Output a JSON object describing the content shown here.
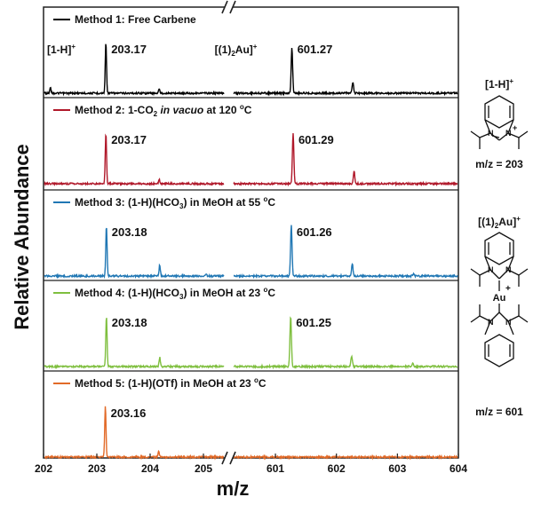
{
  "chart_data": {
    "type": "line",
    "xlabel": "m/z",
    "ylabel": "Relative Abundance",
    "x_segments": [
      {
        "range": [
          202,
          205.4
        ],
        "ticks": [
          "202",
          "203",
          "204",
          "205"
        ]
      },
      {
        "range": [
          600.3,
          604
        ],
        "ticks": [
          "601",
          "602",
          "603",
          "604"
        ]
      }
    ],
    "panels": [
      {
        "name": "Method 1: Free Carbene",
        "legend_parts": [
          {
            "t": "Method 1: Free Carbene"
          }
        ],
        "color": "#000000",
        "peaks": [
          {
            "x": 202.13,
            "h": 0.12
          },
          {
            "x": 203.17,
            "h": 1.0
          },
          {
            "x": 204.17,
            "h": 0.08
          },
          {
            "x": 601.27,
            "h": 0.9
          },
          {
            "x": 602.27,
            "h": 0.22
          }
        ],
        "labels": [
          {
            "text": "203.17",
            "x": 203.17
          },
          {
            "text": "601.27",
            "x": 601.27
          }
        ],
        "species_labels": [
          {
            "text": "[1-H]",
            "sup": "+",
            "x": 202.6
          },
          {
            "text": "[(1)",
            "sub": "2",
            "tail": "Au]",
            "sup": "+",
            "x": 600.7
          }
        ]
      },
      {
        "name": "Method 2: 1-CO2 in vacuo at 120 oC",
        "legend_parts": [
          {
            "t": "Method 2: 1-CO"
          },
          {
            "t": "2",
            "sub": true
          },
          {
            "t": " "
          },
          {
            "t": "in vacuo",
            "italic": true
          },
          {
            "t": " at 120 "
          },
          {
            "t": "o",
            "sup": true
          },
          {
            "t": "C"
          }
        ],
        "color": "#b0182a",
        "peaks": [
          {
            "x": 203.17,
            "h": 1.0
          },
          {
            "x": 204.17,
            "h": 0.08
          },
          {
            "x": 601.29,
            "h": 1.0
          },
          {
            "x": 602.29,
            "h": 0.24
          }
        ],
        "labels": [
          {
            "text": "203.17",
            "x": 203.17
          },
          {
            "text": "601.29",
            "x": 601.29
          }
        ]
      },
      {
        "name": "Method 3: (1-H)(HCO3) in MeOH at 55 oC",
        "legend_parts": [
          {
            "t": "Method 3: (1-H)(HCO"
          },
          {
            "t": "3",
            "sub": true
          },
          {
            "t": ") in MeOH at 55 "
          },
          {
            "t": "o",
            "sup": true
          },
          {
            "t": "C"
          }
        ],
        "color": "#2077b4",
        "peaks": [
          {
            "x": 203.18,
            "h": 1.0
          },
          {
            "x": 204.18,
            "h": 0.22
          },
          {
            "x": 205.05,
            "h": 0.04
          },
          {
            "x": 601.26,
            "h": 1.0
          },
          {
            "x": 602.26,
            "h": 0.24
          },
          {
            "x": 603.26,
            "h": 0.04
          }
        ],
        "labels": [
          {
            "text": "203.18",
            "x": 203.18
          },
          {
            "text": "601.26",
            "x": 601.26
          }
        ]
      },
      {
        "name": "Method 4: (1-H)(HCO3) in MeOH at 23 oC",
        "legend_parts": [
          {
            "t": "Method 4: (1-H)(HCO"
          },
          {
            "t": "3",
            "sub": true
          },
          {
            "t": ") in MeOH at 23 "
          },
          {
            "t": "o",
            "sup": true
          },
          {
            "t": "C"
          }
        ],
        "color": "#7fbf3f",
        "peaks": [
          {
            "x": 203.18,
            "h": 1.0
          },
          {
            "x": 204.18,
            "h": 0.18
          },
          {
            "x": 601.25,
            "h": 1.0
          },
          {
            "x": 602.25,
            "h": 0.22
          },
          {
            "x": 603.25,
            "h": 0.06
          }
        ],
        "labels": [
          {
            "text": "203.18",
            "x": 203.18
          },
          {
            "text": "601.25",
            "x": 601.25
          }
        ]
      },
      {
        "name": "Method 5: (1-H)(OTf) in MeOH at 23 oC",
        "legend_parts": [
          {
            "t": "Method 5: (1-H)(OTf) in MeOH at 23 "
          },
          {
            "t": "o",
            "sup": true
          },
          {
            "t": "C"
          }
        ],
        "color": "#e26a28",
        "peaks": [
          {
            "x": 203.16,
            "h": 1.0
          },
          {
            "x": 204.16,
            "h": 0.12
          }
        ],
        "labels": [
          {
            "text": "203.16",
            "x": 203.16
          }
        ]
      }
    ]
  },
  "structures": {
    "monomer": {
      "title": "[1-H]",
      "title_sup": "+",
      "mz": "m/z = 203"
    },
    "dimer": {
      "title": "[(1)",
      "title_sub": "2",
      "title_tail": "Au]",
      "title_sup": "+",
      "metal": "Au",
      "charge": "+",
      "mz": "m/z = 601"
    }
  }
}
